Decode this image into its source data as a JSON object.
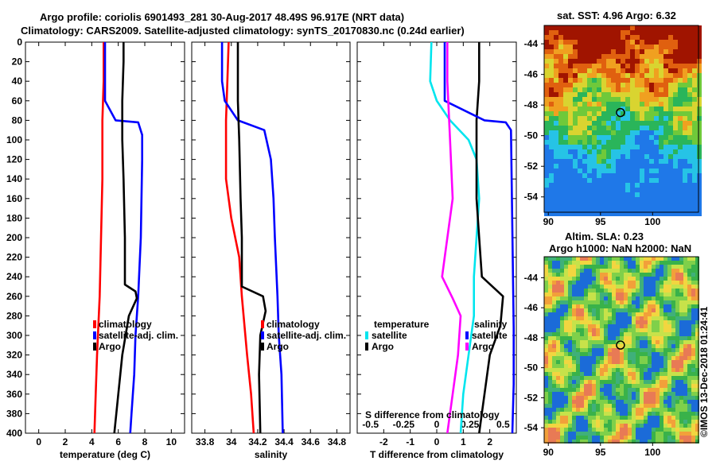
{
  "header": {
    "title_line1": "Argo profile: coriolis 6901493_281 30-Aug-2017 48.49S 96.917E (NRT data)",
    "title_line2": "Climatology: CARS2009. Satellite-adjusted climatology: synTS_20170830.nc (0.24d earlier)"
  },
  "colors": {
    "climatology": "#ff0000",
    "satellite": "#0000ff",
    "argo": "#000000",
    "sat_t_diff": "#00e5ee",
    "sal_diff": "#ff00ff"
  },
  "depth_ticks": [
    "0",
    "20",
    "40",
    "60",
    "80",
    "100",
    "120",
    "140",
    "160",
    "180",
    "200",
    "220",
    "240",
    "260",
    "280",
    "300",
    "320",
    "340",
    "360",
    "380",
    "400"
  ],
  "chart_data": [
    {
      "type": "line",
      "id": "temperature",
      "xlabel": "temperature (deg C)",
      "ylabel": "",
      "xlim": [
        -1,
        11
      ],
      "ylim": [
        400,
        0
      ],
      "xticks": [
        "0",
        "2",
        "4",
        "6",
        "8",
        "10"
      ],
      "xtick_values": [
        0,
        2,
        4,
        6,
        8,
        10
      ],
      "legend": [
        "climatology",
        "satellite-adj. clim.",
        "Argo"
      ],
      "legend_placement": "right-middle",
      "series": [
        {
          "name": "climatology",
          "color": "#ff0000",
          "points": [
            [
              4.9,
              0
            ],
            [
              4.9,
              40
            ],
            [
              4.8,
              80
            ],
            [
              4.8,
              140
            ],
            [
              4.7,
              200
            ],
            [
              4.6,
              260
            ],
            [
              4.4,
              320
            ],
            [
              4.3,
              360
            ],
            [
              4.2,
              400
            ]
          ]
        },
        {
          "name": "satellite-adj. clim.",
          "color": "#0000ff",
          "points": [
            [
              5.0,
              0
            ],
            [
              5.0,
              60
            ],
            [
              5.8,
              80
            ],
            [
              7.5,
              82
            ],
            [
              7.8,
              95
            ],
            [
              7.8,
              120
            ],
            [
              7.7,
              200
            ],
            [
              7.5,
              260
            ],
            [
              7.3,
              300
            ],
            [
              7.2,
              340
            ],
            [
              7.0,
              380
            ],
            [
              6.9,
              400
            ]
          ]
        },
        {
          "name": "Argo",
          "color": "#000000",
          "points": [
            [
              6.4,
              0
            ],
            [
              6.4,
              20
            ],
            [
              6.3,
              60
            ],
            [
              6.3,
              100
            ],
            [
              6.4,
              140
            ],
            [
              6.5,
              200
            ],
            [
              6.5,
              248
            ],
            [
              7.3,
              255
            ],
            [
              7.4,
              262
            ],
            [
              6.8,
              280
            ],
            [
              6.3,
              320
            ],
            [
              6.0,
              360
            ],
            [
              5.7,
              400
            ]
          ]
        }
      ]
    },
    {
      "type": "line",
      "id": "salinity",
      "xlabel": "salinity",
      "ylabel": "",
      "xlim": [
        33.7,
        34.9
      ],
      "ylim": [
        400,
        0
      ],
      "xticks": [
        "33.8",
        "34",
        "34.2",
        "34.4",
        "34.6",
        "34.8"
      ],
      "xtick_values": [
        33.8,
        34.0,
        34.2,
        34.4,
        34.6,
        34.8
      ],
      "legend": [
        "climatology",
        "satellite-adj. clim.",
        "Argo"
      ],
      "legend_placement": "right-middle",
      "series": [
        {
          "name": "climatology",
          "color": "#ff0000",
          "points": [
            [
              33.98,
              0
            ],
            [
              33.97,
              40
            ],
            [
              33.96,
              80
            ],
            [
              33.96,
              140
            ],
            [
              34.0,
              180
            ],
            [
              34.06,
              220
            ],
            [
              34.08,
              260
            ],
            [
              34.12,
              320
            ],
            [
              34.15,
              360
            ],
            [
              34.17,
              400
            ]
          ]
        },
        {
          "name": "satellite-adj. clim.",
          "color": "#0000ff",
          "points": [
            [
              33.93,
              0
            ],
            [
              33.93,
              40
            ],
            [
              33.95,
              60
            ],
            [
              34.05,
              80
            ],
            [
              34.25,
              90
            ],
            [
              34.3,
              120
            ],
            [
              34.32,
              160
            ],
            [
              34.33,
              200
            ],
            [
              34.35,
              260
            ],
            [
              34.36,
              300
            ],
            [
              34.38,
              340
            ],
            [
              34.39,
              400
            ]
          ]
        },
        {
          "name": "Argo",
          "color": "#000000",
          "points": [
            [
              34.05,
              0
            ],
            [
              34.05,
              60
            ],
            [
              34.06,
              100
            ],
            [
              34.07,
              160
            ],
            [
              34.08,
              200
            ],
            [
              34.08,
              250
            ],
            [
              34.24,
              260
            ],
            [
              34.26,
              275
            ],
            [
              34.22,
              300
            ],
            [
              34.21,
              340
            ],
            [
              34.22,
              400
            ]
          ]
        }
      ]
    },
    {
      "type": "line",
      "id": "difference",
      "xlabel": "T difference from climatology",
      "xlabel_top": "S difference from climatology",
      "ylabel": "",
      "xlim": [
        -3,
        3
      ],
      "ylim": [
        400,
        0
      ],
      "xticks": [
        "-2",
        "-1",
        "0",
        "1",
        "2"
      ],
      "xtick_values": [
        -2,
        -1,
        0,
        1,
        2
      ],
      "top_ticks": [
        "-0.5",
        "-0.25",
        "0",
        "0.25",
        "0.5"
      ],
      "legend_left": [
        "temperature",
        "satellite",
        "Argo"
      ],
      "legend_right": [
        "salinity",
        "satellite",
        "Argo"
      ],
      "legend_placement": "lower-middle",
      "series": [
        {
          "name": "temperature satellite",
          "color": "#00e5ee",
          "points": [
            [
              -0.2,
              0
            ],
            [
              -0.25,
              40
            ],
            [
              0.0,
              60
            ],
            [
              0.5,
              80
            ],
            [
              1.2,
              100
            ],
            [
              1.5,
              120
            ],
            [
              1.6,
              160
            ],
            [
              1.5,
              200
            ],
            [
              1.4,
              240
            ],
            [
              1.4,
              280
            ],
            [
              1.2,
              320
            ],
            [
              1.0,
              360
            ],
            [
              0.9,
              400
            ]
          ]
        },
        {
          "name": "temperature Argo",
          "color": "#000000",
          "points": [
            [
              1.6,
              0
            ],
            [
              1.6,
              40
            ],
            [
              1.5,
              80
            ],
            [
              1.5,
              160
            ],
            [
              1.6,
              200
            ],
            [
              1.7,
              240
            ],
            [
              2.5,
              260
            ],
            [
              2.4,
              290
            ],
            [
              2.0,
              320
            ],
            [
              1.8,
              360
            ],
            [
              1.6,
              400
            ]
          ]
        },
        {
          "name": "salinity satellite",
          "color": "#0000ff",
          "points": [
            [
              0.3,
              0
            ],
            [
              0.3,
              60
            ],
            [
              1.8,
              80
            ],
            [
              2.6,
              82
            ],
            [
              2.8,
              90
            ],
            [
              2.9,
              292
            ],
            [
              2.9,
              350
            ],
            [
              2.85,
              400
            ]
          ]
        },
        {
          "name": "salinity Argo",
          "color": "#ff00ff",
          "points": [
            [
              0.4,
              0
            ],
            [
              0.4,
              40
            ],
            [
              0.5,
              100
            ],
            [
              0.6,
              160
            ],
            [
              0.3,
              220
            ],
            [
              0.2,
              240
            ],
            [
              0.6,
              262
            ],
            [
              0.9,
              280
            ],
            [
              0.8,
              320
            ],
            [
              0.6,
              360
            ],
            [
              0.4,
              400
            ]
          ]
        }
      ]
    },
    {
      "type": "heatmap",
      "id": "sst_map",
      "title": "sat. SST: 4.96 Argo: 6.32",
      "xticks": [
        "90",
        "95",
        "100"
      ],
      "yticks": [
        "-44",
        "-46",
        "-48",
        "-50",
        "-52",
        "-54"
      ],
      "xlim": [
        89.6,
        104.4
      ],
      "ylim": [
        -55,
        -42.8
      ],
      "marker": [
        96.917,
        -48.49
      ]
    },
    {
      "type": "heatmap",
      "id": "sla_map",
      "title": "Altim. SLA: 0.23",
      "subtitle": "Argo h1000: NaN h2000: NaN",
      "xticks": [
        "90",
        "95",
        "100"
      ],
      "yticks": [
        "-44",
        "-46",
        "-48",
        "-50",
        "-52",
        "-54"
      ],
      "xlim": [
        89.6,
        104.4
      ],
      "ylim": [
        -55,
        -42.6
      ],
      "marker": [
        96.917,
        -48.49
      ]
    }
  ],
  "watermark": "©IMOS 13-Dec-2018 01:24:41"
}
